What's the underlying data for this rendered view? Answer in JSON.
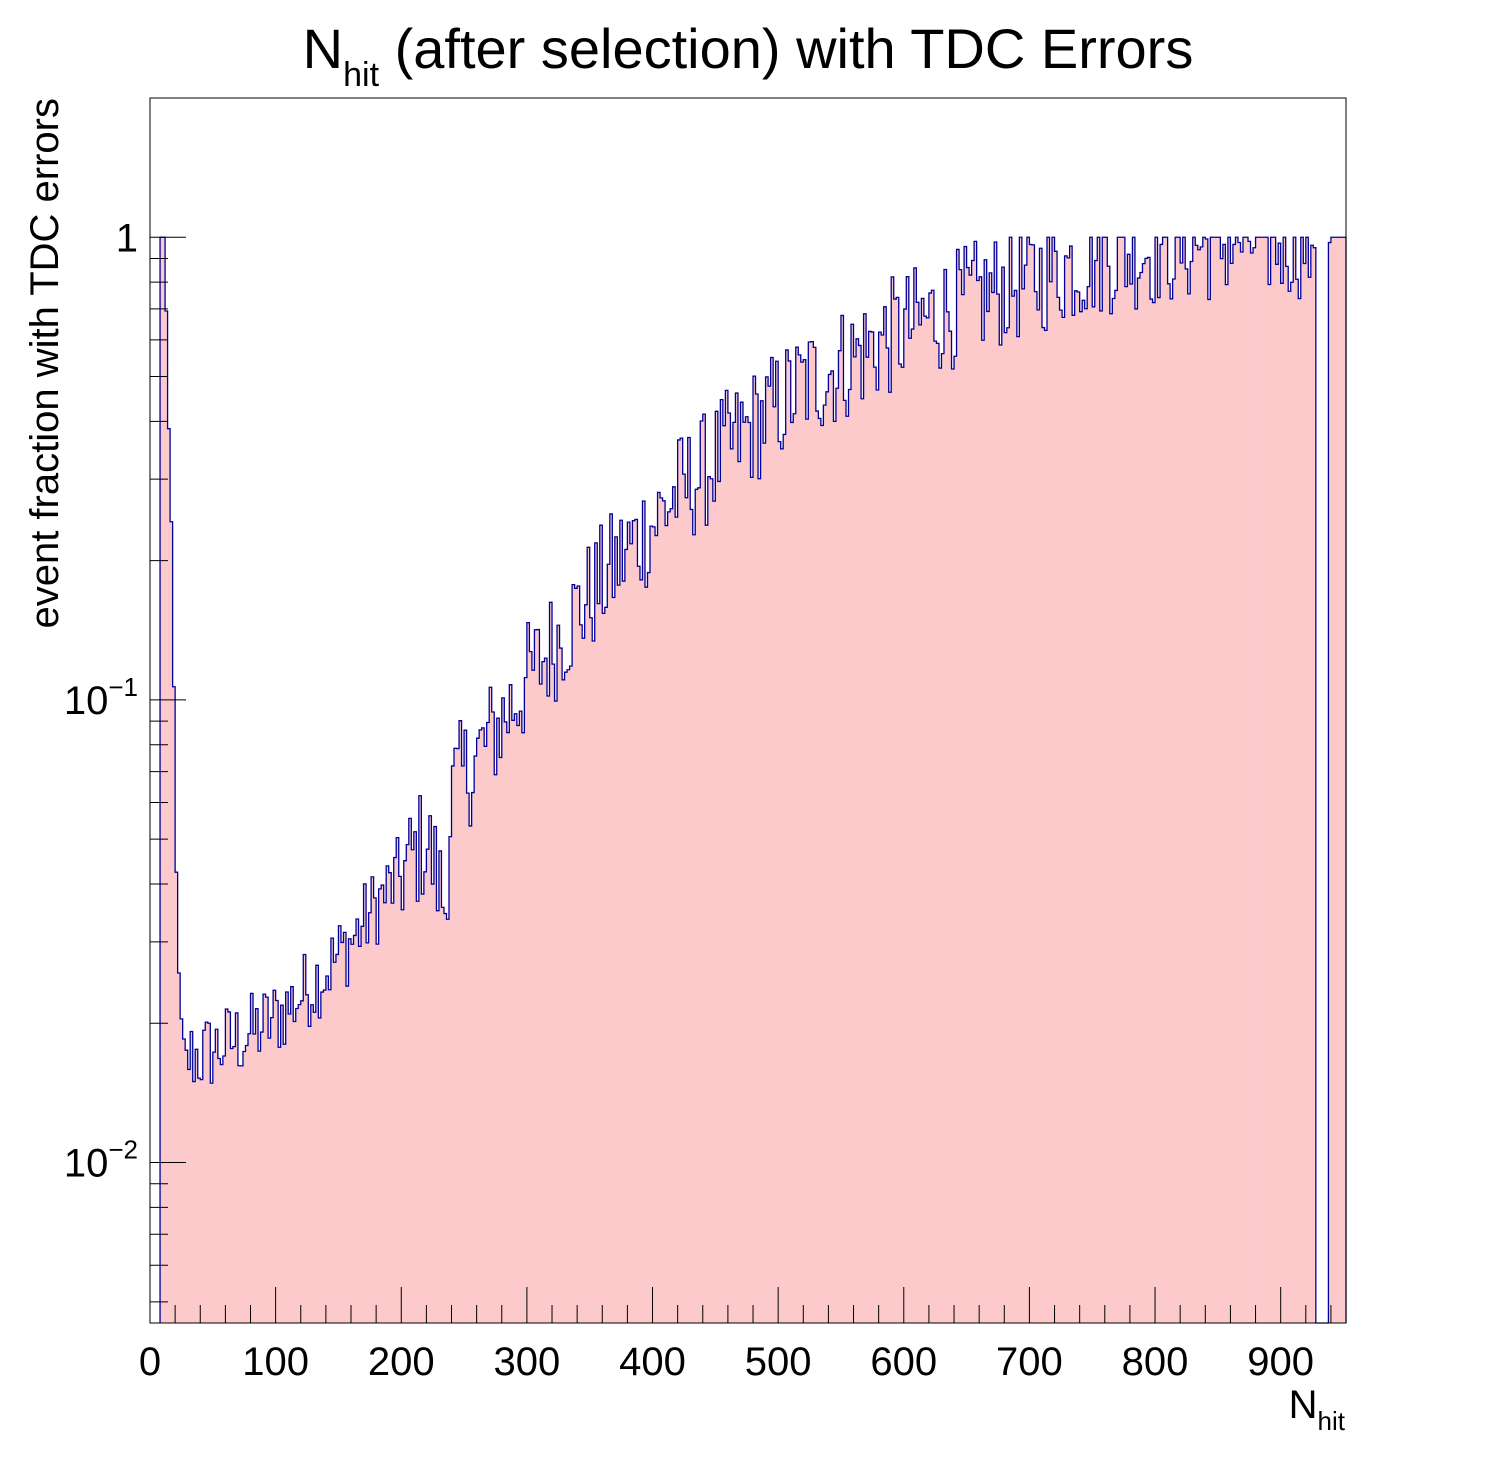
{
  "chart_data": {
    "type": "bar",
    "title": {
      "main": "N",
      "sub": "hit",
      "rest": " (after selection) with TDC Errors"
    },
    "xlabel": {
      "main": "N",
      "sub": "hit"
    },
    "ylabel": "event fraction with TDC errors",
    "xlim": [
      0,
      952
    ],
    "ylim": [
      0.0045,
      2.0
    ],
    "yscale": "log",
    "bin_width": 2,
    "grid": false,
    "legend": "none",
    "x_ticks": [
      0,
      100,
      200,
      300,
      400,
      500,
      600,
      700,
      800,
      900
    ],
    "x_tick_labels": [
      "0",
      "100",
      "200",
      "300",
      "400",
      "500",
      "600",
      "700",
      "800",
      "900"
    ],
    "y_ticks": [
      {
        "value": 0.01,
        "base": "10",
        "exp": "−2"
      },
      {
        "value": 0.1,
        "base": "10",
        "exp": "−1"
      },
      {
        "value": 1,
        "base": "1",
        "exp": ""
      }
    ],
    "x": [
      10,
      12,
      14,
      16,
      18,
      20,
      22,
      24,
      26,
      28,
      30,
      40,
      60,
      80,
      100,
      120,
      140,
      160,
      180,
      200,
      220,
      235,
      240,
      260,
      280,
      300,
      320,
      340,
      360,
      380,
      400,
      420,
      440,
      460,
      480,
      500,
      520,
      540,
      560,
      580,
      600,
      620,
      640,
      660,
      680,
      700,
      720,
      740,
      760,
      780,
      800,
      820,
      840,
      860,
      880,
      900,
      920,
      936,
      940,
      945,
      950
    ],
    "y": [
      1.0,
      1.0,
      0.48,
      0.31,
      0.19,
      0.06,
      0.03,
      0.022,
      0.019,
      0.018,
      0.017,
      0.017,
      0.018,
      0.019,
      0.0205,
      0.023,
      0.026,
      0.03,
      0.036,
      0.042,
      0.05,
      0.036,
      0.063,
      0.075,
      0.09,
      0.11,
      0.13,
      0.155,
      0.18,
      0.21,
      0.24,
      0.28,
      0.31,
      0.35,
      0.39,
      0.43,
      0.48,
      0.51,
      0.55,
      0.59,
      0.63,
      0.67,
      0.7,
      0.74,
      0.78,
      0.81,
      0.85,
      0.88,
      0.91,
      0.93,
      0.95,
      0.96,
      0.97,
      0.98,
      0.99,
      0.99,
      0.99,
      0.9,
      1.0,
      1.0,
      1.0
    ],
    "colors": {
      "fill": "#fccacb",
      "line": "#000099",
      "axis": "#000000"
    }
  }
}
